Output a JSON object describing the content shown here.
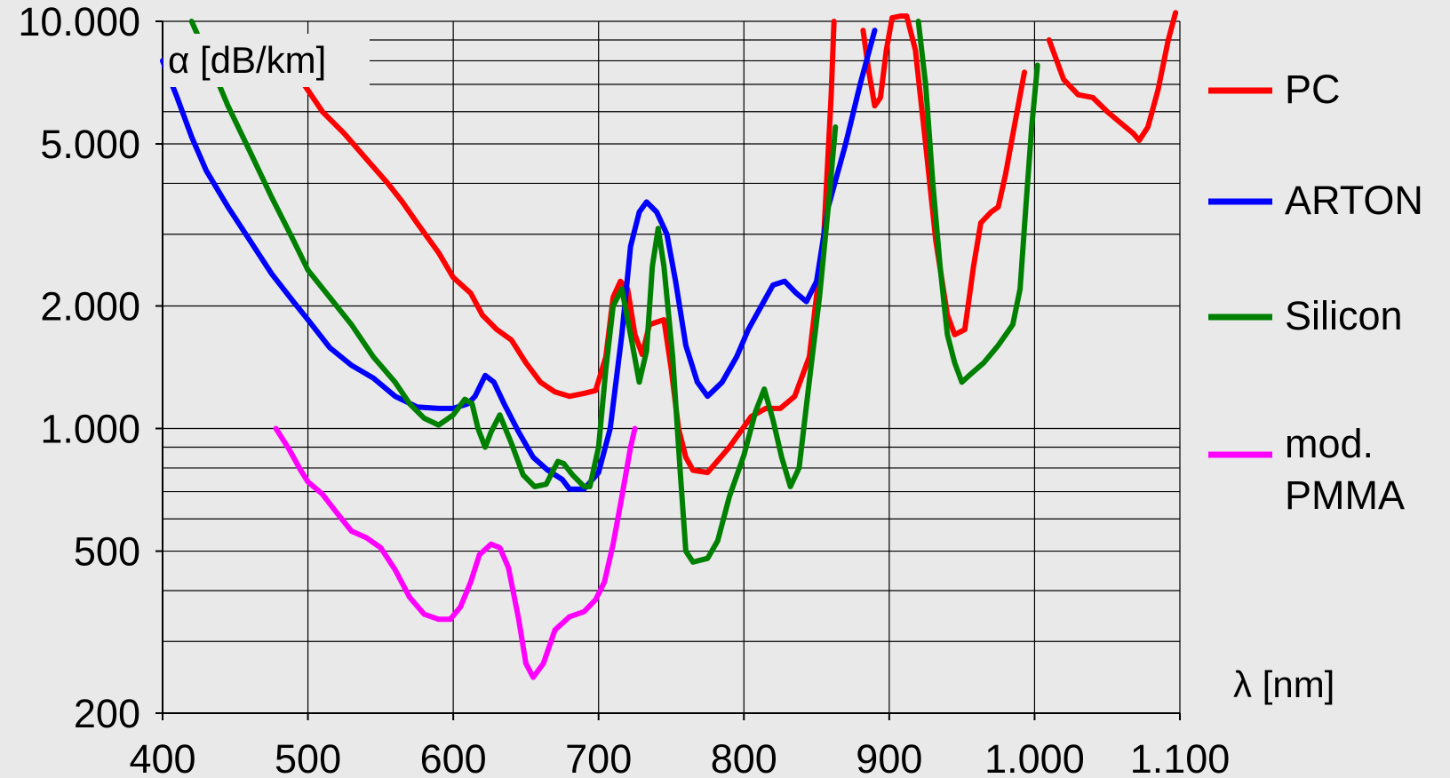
{
  "chart_data": {
    "type": "line",
    "title": "",
    "ylabel": "α [dB/km]",
    "xlabel": "λ [nm]",
    "y_scale": "log",
    "xlim": [
      400,
      1100
    ],
    "ylim": [
      200,
      10000
    ],
    "grid": true,
    "legend_position": "right",
    "x_ticks": [
      {
        "value": 400,
        "label": "400"
      },
      {
        "value": 500,
        "label": "500"
      },
      {
        "value": 600,
        "label": "600"
      },
      {
        "value": 700,
        "label": "700"
      },
      {
        "value": 800,
        "label": "800"
      },
      {
        "value": 900,
        "label": "900"
      },
      {
        "value": 1000,
        "label": "1.000"
      },
      {
        "value": 1100,
        "label": "1.100"
      }
    ],
    "y_ticks": [
      {
        "value": 200,
        "label": "200"
      },
      {
        "value": 500,
        "label": "500"
      },
      {
        "value": 1000,
        "label": "1.000"
      },
      {
        "value": 2000,
        "label": "2.000"
      },
      {
        "value": 5000,
        "label": "5.000"
      },
      {
        "value": 10000,
        "label": "10.000"
      }
    ],
    "y_minor_grid": [
      300,
      400,
      600,
      700,
      800,
      900,
      3000,
      4000,
      6000,
      7000,
      8000,
      9000
    ],
    "series": [
      {
        "name": "PC",
        "color": "#ff0000",
        "segments": [
          [
            [
              495,
              7200
            ],
            [
              510,
              6000
            ],
            [
              525,
              5300
            ],
            [
              540,
              4600
            ],
            [
              555,
              4000
            ],
            [
              565,
              3600
            ],
            [
              575,
              3200
            ],
            [
              590,
              2700
            ],
            [
              600,
              2350
            ],
            [
              612,
              2150
            ],
            [
              620,
              1900
            ],
            [
              630,
              1750
            ],
            [
              640,
              1650
            ],
            [
              650,
              1450
            ],
            [
              660,
              1300
            ],
            [
              670,
              1230
            ],
            [
              680,
              1200
            ],
            [
              690,
              1220
            ],
            [
              698,
              1240
            ],
            [
              705,
              1500
            ],
            [
              710,
              2100
            ],
            [
              715,
              2300
            ],
            [
              720,
              2200
            ],
            [
              725,
              1700
            ],
            [
              730,
              1520
            ],
            [
              735,
              1800
            ],
            [
              745,
              1850
            ],
            [
              750,
              1400
            ],
            [
              755,
              1000
            ],
            [
              760,
              850
            ],
            [
              765,
              790
            ],
            [
              775,
              780
            ],
            [
              790,
              900
            ],
            [
              805,
              1070
            ],
            [
              815,
              1120
            ],
            [
              825,
              1120
            ],
            [
              835,
              1200
            ],
            [
              845,
              1500
            ],
            [
              855,
              3000
            ],
            [
              860,
              6500
            ],
            [
              862,
              10000
            ]
          ],
          [
            [
              882,
              9500
            ],
            [
              886,
              7500
            ],
            [
              890,
              6200
            ],
            [
              894,
              6500
            ],
            [
              898,
              8500
            ],
            [
              902,
              10200
            ],
            [
              908,
              10300
            ],
            [
              912,
              10300
            ],
            [
              918,
              8500
            ],
            [
              925,
              5000
            ],
            [
              932,
              2900
            ],
            [
              940,
              1900
            ],
            [
              945,
              1700
            ],
            [
              952,
              1750
            ],
            [
              958,
              2500
            ],
            [
              963,
              3200
            ],
            [
              970,
              3400
            ],
            [
              975,
              3500
            ],
            [
              980,
              4200
            ],
            [
              986,
              5500
            ],
            [
              993,
              7500
            ]
          ],
          [
            [
              1010,
              9000
            ],
            [
              1020,
              7200
            ],
            [
              1030,
              6600
            ],
            [
              1040,
              6500
            ],
            [
              1050,
              6000
            ],
            [
              1060,
              5600
            ],
            [
              1068,
              5300
            ],
            [
              1072,
              5100
            ],
            [
              1078,
              5500
            ],
            [
              1085,
              6800
            ],
            [
              1092,
              9000
            ],
            [
              1097,
              10500
            ]
          ]
        ]
      },
      {
        "name": "ARTON",
        "color": "#0000ff",
        "segments": [
          [
            [
              400,
              8000
            ],
            [
              410,
              6500
            ],
            [
              420,
              5200
            ],
            [
              430,
              4300
            ],
            [
              445,
              3500
            ],
            [
              460,
              2900
            ],
            [
              475,
              2400
            ],
            [
              490,
              2050
            ],
            [
              500,
              1850
            ],
            [
              515,
              1580
            ],
            [
              530,
              1430
            ],
            [
              545,
              1330
            ],
            [
              560,
              1200
            ],
            [
              575,
              1130
            ],
            [
              590,
              1120
            ],
            [
              600,
              1120
            ],
            [
              610,
              1150
            ],
            [
              615,
              1200
            ],
            [
              622,
              1350
            ],
            [
              628,
              1300
            ],
            [
              635,
              1150
            ],
            [
              645,
              980
            ],
            [
              655,
              850
            ],
            [
              665,
              790
            ],
            [
              675,
              750
            ],
            [
              680,
              710
            ],
            [
              690,
              710
            ],
            [
              700,
              780
            ],
            [
              708,
              1000
            ],
            [
              716,
              1700
            ],
            [
              722,
              2800
            ],
            [
              728,
              3400
            ],
            [
              733,
              3600
            ],
            [
              740,
              3400
            ],
            [
              747,
              3000
            ],
            [
              753,
              2300
            ],
            [
              760,
              1600
            ],
            [
              768,
              1300
            ],
            [
              775,
              1200
            ],
            [
              785,
              1300
            ],
            [
              795,
              1500
            ],
            [
              803,
              1750
            ],
            [
              812,
              2000
            ],
            [
              820,
              2250
            ],
            [
              828,
              2300
            ],
            [
              836,
              2150
            ],
            [
              843,
              2050
            ],
            [
              850,
              2300
            ],
            [
              858,
              3500
            ],
            [
              870,
              5000
            ],
            [
              880,
              7000
            ],
            [
              890,
              9500
            ]
          ]
        ]
      },
      {
        "name": "Silicon",
        "color": "#008000",
        "segments": [
          [
            [
              420,
              10000
            ],
            [
              432,
              8000
            ],
            [
              445,
              6200
            ],
            [
              460,
              4800
            ],
            [
              475,
              3700
            ],
            [
              490,
              2900
            ],
            [
              500,
              2450
            ],
            [
              515,
              2100
            ],
            [
              530,
              1800
            ],
            [
              545,
              1500
            ],
            [
              560,
              1300
            ],
            [
              570,
              1150
            ],
            [
              580,
              1060
            ],
            [
              590,
              1020
            ],
            [
              600,
              1080
            ],
            [
              608,
              1180
            ],
            [
              613,
              1150
            ],
            [
              617,
              1000
            ],
            [
              622,
              900
            ],
            [
              626,
              980
            ],
            [
              632,
              1080
            ],
            [
              640,
              920
            ],
            [
              648,
              770
            ],
            [
              656,
              720
            ],
            [
              664,
              730
            ],
            [
              668,
              780
            ],
            [
              672,
              830
            ],
            [
              676,
              820
            ],
            [
              682,
              770
            ],
            [
              690,
              720
            ],
            [
              694,
              720
            ],
            [
              700,
              900
            ],
            [
              705,
              1400
            ],
            [
              710,
              2000
            ],
            [
              716,
              2200
            ],
            [
              722,
              1700
            ],
            [
              728,
              1300
            ],
            [
              733,
              1550
            ],
            [
              737,
              2500
            ],
            [
              741,
              3100
            ],
            [
              745,
              2500
            ],
            [
              751,
              1500
            ],
            [
              756,
              800
            ],
            [
              760,
              500
            ],
            [
              765,
              470
            ],
            [
              775,
              480
            ],
            [
              782,
              530
            ],
            [
              790,
              680
            ],
            [
              800,
              860
            ],
            [
              808,
              1100
            ],
            [
              814,
              1250
            ],
            [
              820,
              1050
            ],
            [
              826,
              850
            ],
            [
              832,
              720
            ],
            [
              838,
              800
            ],
            [
              846,
              1400
            ],
            [
              852,
              2100
            ],
            [
              858,
              3500
            ],
            [
              863,
              5500
            ]
          ],
          [
            [
              920,
              10000
            ],
            [
              925,
              7000
            ],
            [
              930,
              4000
            ],
            [
              935,
              2500
            ],
            [
              940,
              1700
            ],
            [
              945,
              1450
            ],
            [
              950,
              1300
            ],
            [
              955,
              1350
            ],
            [
              965,
              1450
            ],
            [
              975,
              1600
            ],
            [
              985,
              1800
            ],
            [
              990,
              2200
            ],
            [
              994,
              3500
            ],
            [
              998,
              5500
            ],
            [
              1002,
              7800
            ]
          ]
        ]
      },
      {
        "name": "mod. PMMA",
        "color": "#ff00ff",
        "segments": [
          [
            [
              478,
              1000
            ],
            [
              487,
              890
            ],
            [
              495,
              790
            ],
            [
              500,
              740
            ],
            [
              510,
              690
            ],
            [
              520,
              620
            ],
            [
              530,
              560
            ],
            [
              540,
              540
            ],
            [
              550,
              510
            ],
            [
              560,
              450
            ],
            [
              570,
              385
            ],
            [
              580,
              350
            ],
            [
              590,
              340
            ],
            [
              598,
              340
            ],
            [
              605,
              365
            ],
            [
              612,
              420
            ],
            [
              618,
              490
            ],
            [
              626,
              520
            ],
            [
              632,
              510
            ],
            [
              638,
              455
            ],
            [
              645,
              340
            ],
            [
              650,
              265
            ],
            [
              655,
              245
            ],
            [
              662,
              265
            ],
            [
              670,
              320
            ],
            [
              680,
              345
            ],
            [
              690,
              355
            ],
            [
              698,
              380
            ],
            [
              704,
              420
            ],
            [
              710,
              520
            ],
            [
              716,
              680
            ],
            [
              722,
              900
            ],
            [
              725,
              1000
            ]
          ]
        ]
      }
    ]
  },
  "legend": [
    {
      "label": "PC",
      "color": "#ff0000"
    },
    {
      "label": "ARTON",
      "color": "#0000ff"
    },
    {
      "label": "Silicon",
      "color": "#008000"
    },
    {
      "label": "mod.",
      "label2": "PMMA",
      "color": "#ff00ff"
    }
  ]
}
